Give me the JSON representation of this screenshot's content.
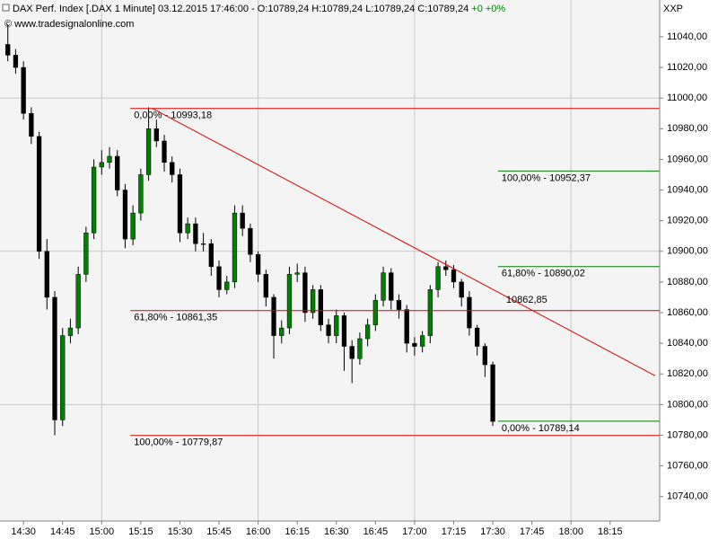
{
  "chart_data": {
    "type": "candlestick",
    "title": "DAX Perf. Index [.DAX  1 Minute] 03.12.2015 17:46:00 - O:10789,24 H:10789,24 L:10789,24 C:10789,24",
    "change": "+0 +0%",
    "subtitle": "© www.tradesignalonline.com",
    "axis_title": "XXP",
    "x": [
      864,
      867,
      870,
      873,
      876,
      879,
      882,
      885,
      888,
      891,
      894,
      897,
      900,
      903,
      906,
      909,
      912,
      915,
      918,
      921,
      924,
      927,
      930,
      933,
      936,
      939,
      942,
      945,
      948,
      951,
      954,
      957,
      960,
      963,
      966,
      969,
      972,
      975,
      978,
      981,
      984,
      987,
      990,
      993,
      996,
      999,
      1002,
      1005,
      1008,
      1011,
      1014,
      1017,
      1020,
      1023,
      1026,
      1029,
      1032,
      1035,
      1038,
      1041,
      1044,
      1047,
      1050
    ],
    "open": [
      11035,
      11028,
      11020,
      10990,
      10975,
      10900,
      10870,
      10790,
      10845,
      10850,
      10885,
      10912,
      10955,
      10958,
      10962,
      10940,
      10908,
      10925,
      10950,
      10980,
      10972,
      10958,
      10950,
      10912,
      10918,
      10905,
      10905,
      10890,
      10875,
      10880,
      10925,
      10915,
      10898,
      10885,
      10870,
      10845,
      10850,
      10885,
      10886,
      10860,
      10875,
      10852,
      10845,
      10858,
      10838,
      10830,
      10843,
      10852,
      10868,
      10886,
      10868,
      10862,
      10840,
      10838,
      10845,
      10875,
      10890,
      10888,
      10880,
      10870,
      10850,
      10838,
      10826
    ],
    "high": [
      11048,
      11032,
      11024,
      10994,
      10978,
      10908,
      10874,
      10850,
      10856,
      10890,
      10916,
      10960,
      10966,
      10968,
      10966,
      10944,
      10930,
      10954,
      10994,
      10986,
      10976,
      10962,
      10954,
      10922,
      10922,
      10912,
      10908,
      10894,
      10884,
      10930,
      10930,
      10918,
      10900,
      10888,
      10872,
      10855,
      10890,
      10892,
      10890,
      10878,
      10878,
      10856,
      10862,
      10860,
      10842,
      10847,
      10856,
      10872,
      10890,
      10889,
      10872,
      10865,
      10844,
      10848,
      10878,
      10893,
      10894,
      10891,
      10882,
      10874,
      10852,
      10840,
      10828
    ],
    "low": [
      11024,
      11016,
      10986,
      10970,
      10895,
      10862,
      10780,
      10786,
      10840,
      10846,
      10880,
      10908,
      10950,
      10954,
      10936,
      10902,
      10904,
      10920,
      10946,
      10968,
      10952,
      10945,
      10906,
      10908,
      10900,
      10900,
      10884,
      10870,
      10872,
      10876,
      10910,
      10893,
      10880,
      10864,
      10830,
      10840,
      10846,
      10880,
      10854,
      10856,
      10848,
      10840,
      10840,
      10822,
      10814,
      10826,
      10838,
      10848,
      10864,
      10862,
      10856,
      10834,
      10832,
      10834,
      10840,
      10870,
      10884,
      10876,
      10864,
      10845,
      10832,
      10818,
      10786
    ],
    "close": [
      11028,
      11020,
      10990,
      10975,
      10900,
      10870,
      10790,
      10845,
      10850,
      10885,
      10912,
      10955,
      10958,
      10962,
      10940,
      10908,
      10925,
      10950,
      10980,
      10972,
      10958,
      10950,
      10912,
      10918,
      10905,
      10905,
      10890,
      10875,
      10880,
      10925,
      10915,
      10898,
      10885,
      10870,
      10845,
      10850,
      10885,
      10886,
      10860,
      10875,
      10852,
      10845,
      10858,
      10838,
      10830,
      10843,
      10852,
      10868,
      10886,
      10868,
      10862,
      10840,
      10838,
      10845,
      10875,
      10890,
      10888,
      10880,
      10870,
      10850,
      10838,
      10826,
      10789
    ],
    "up_color": "#008000",
    "down_color": "#000000",
    "xlim": [
      861,
      1114
    ],
    "ylim": [
      10724,
      11064
    ],
    "xticks": [
      {
        "value": 870,
        "label": "14:30"
      },
      {
        "value": 885,
        "label": "14:45"
      },
      {
        "value": 900,
        "label": "15:00"
      },
      {
        "value": 915,
        "label": "15:15"
      },
      {
        "value": 930,
        "label": "15:30"
      },
      {
        "value": 945,
        "label": "15:45"
      },
      {
        "value": 960,
        "label": "16:00"
      },
      {
        "value": 975,
        "label": "16:15"
      },
      {
        "value": 990,
        "label": "16:30"
      },
      {
        "value": 1005,
        "label": "16:45"
      },
      {
        "value": 1020,
        "label": "17:00"
      },
      {
        "value": 1035,
        "label": "17:15"
      },
      {
        "value": 1050,
        "label": "17:30"
      },
      {
        "value": 1065,
        "label": "17:45"
      },
      {
        "value": 1080,
        "label": "18:00"
      },
      {
        "value": 1095,
        "label": "18:15"
      }
    ],
    "yticks": [
      {
        "value": 10740,
        "label": "10740,00"
      },
      {
        "value": 10760,
        "label": "10760,00"
      },
      {
        "value": 10780,
        "label": "10780,00"
      },
      {
        "value": 10800,
        "label": "10800,00"
      },
      {
        "value": 10820,
        "label": "10820,00"
      },
      {
        "value": 10840,
        "label": "10840,00"
      },
      {
        "value": 10860,
        "label": "10860,00"
      },
      {
        "value": 10880,
        "label": "10880,00"
      },
      {
        "value": 10900,
        "label": "10900,00"
      },
      {
        "value": 10920,
        "label": "10920,00"
      },
      {
        "value": 10940,
        "label": "10940,00"
      },
      {
        "value": 10960,
        "label": "10960,00"
      },
      {
        "value": 10980,
        "label": "10980,00"
      },
      {
        "value": 11000,
        "label": "11000,00"
      },
      {
        "value": 11020,
        "label": "11020,00"
      },
      {
        "value": 11040,
        "label": "11040,00"
      }
    ],
    "grid_y": [
      10800,
      10900,
      11000
    ],
    "grid_x": [
      900,
      960,
      1020,
      1080
    ],
    "fib_red": {
      "color": "#e00000",
      "start": 911,
      "levels": [
        {
          "value": 10993.18,
          "label": "0,00% - 10993,18"
        },
        {
          "value": 10861.35,
          "label": "61,80% - 10861,35"
        },
        {
          "value": 10779.87,
          "label": "100,00% - 10779,87"
        }
      ]
    },
    "fib_green": {
      "color": "#008000",
      "start": 1052,
      "levels": [
        {
          "value": 10952.37,
          "label": "100,00% - 10952,37"
        },
        {
          "value": 10890.02,
          "label": "61,80% - 10890,02"
        },
        {
          "value": 10789.14,
          "label": "0,00% - 10789,14"
        }
      ]
    },
    "trendline": {
      "color": "#e00000",
      "x": [
        919.5,
        1112.3
      ],
      "y": [
        10993.18,
        10818.8
      ],
      "label_value": 10862.85,
      "label": "10862,85",
      "label_x": 1063
    }
  }
}
